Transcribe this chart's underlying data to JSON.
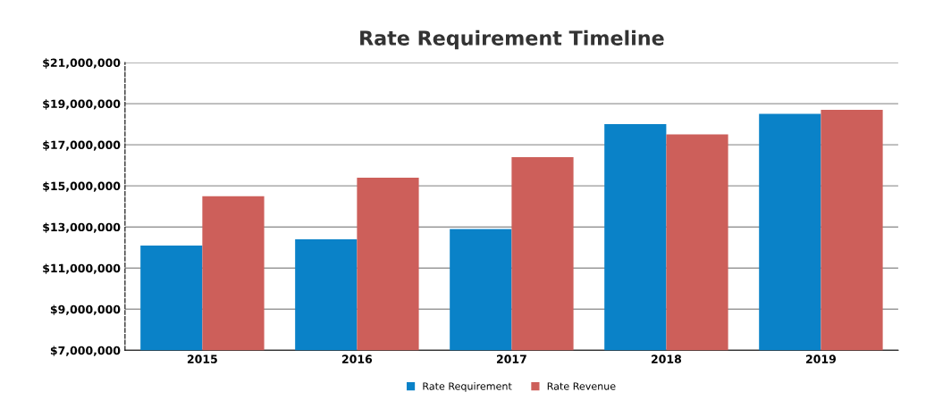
{
  "chart_data": {
    "type": "bar",
    "title": "Rate Requirement Timeline",
    "categories": [
      "2015",
      "2016",
      "2017",
      "2018",
      "2019"
    ],
    "series": [
      {
        "name": "Rate Requirement",
        "color": "#0a82c8",
        "values": [
          12100000,
          12400000,
          12900000,
          18000000,
          18500000
        ]
      },
      {
        "name": "Rate Revenue",
        "color": "#cd5f5a",
        "values": [
          14500000,
          15400000,
          16400000,
          17500000,
          18700000
        ]
      }
    ],
    "ylim": [
      7000000,
      21000000
    ],
    "yticks": [
      {
        "value": 7000000,
        "label": "$7,000,000"
      },
      {
        "value": 9000000,
        "label": "$9,000,000"
      },
      {
        "value": 11000000,
        "label": "$11,000,000"
      },
      {
        "value": 13000000,
        "label": "$13,000,000"
      },
      {
        "value": 15000000,
        "label": "$15,000,000"
      },
      {
        "value": 17000000,
        "label": "$17,000,000"
      },
      {
        "value": 19000000,
        "label": "$19,000,000"
      },
      {
        "value": 21000000,
        "label": "$21,000,000"
      }
    ],
    "grid": "y",
    "legend": "bottom"
  }
}
